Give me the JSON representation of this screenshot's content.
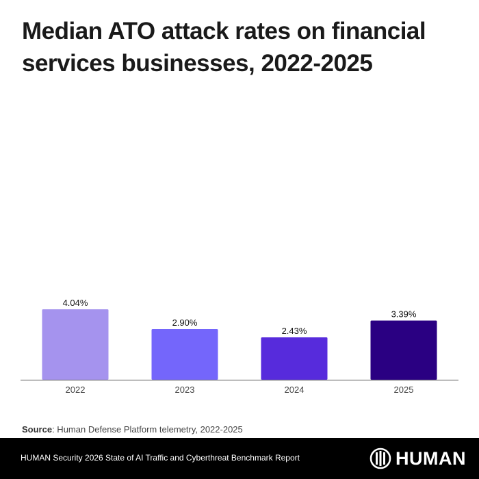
{
  "title": "Median ATO attack rates on financial services businesses, 2022-2025",
  "source": {
    "label": "Source",
    "text": ": Human Defense Platform telemetry, 2022-2025"
  },
  "footer": {
    "report": "HUMAN Security 2026 State of AI Traffic and Cyberthreat Benchmark Report",
    "brand": "HUMAN"
  },
  "chart_data": {
    "type": "bar",
    "title": "Median ATO attack rates on financial services businesses, 2022-2025",
    "xlabel": "",
    "ylabel": "",
    "categories": [
      "2022",
      "2023",
      "2024",
      "2025"
    ],
    "values": [
      4.04,
      2.9,
      2.43,
      3.39
    ],
    "data_labels": [
      "4.04%",
      "2.90%",
      "2.43%",
      "3.39%"
    ],
    "colors": [
      "#a593ee",
      "#7466fb",
      "#572bdc",
      "#2a0082"
    ],
    "ylim": [
      0,
      16
    ],
    "grid": false,
    "legend": "none"
  }
}
